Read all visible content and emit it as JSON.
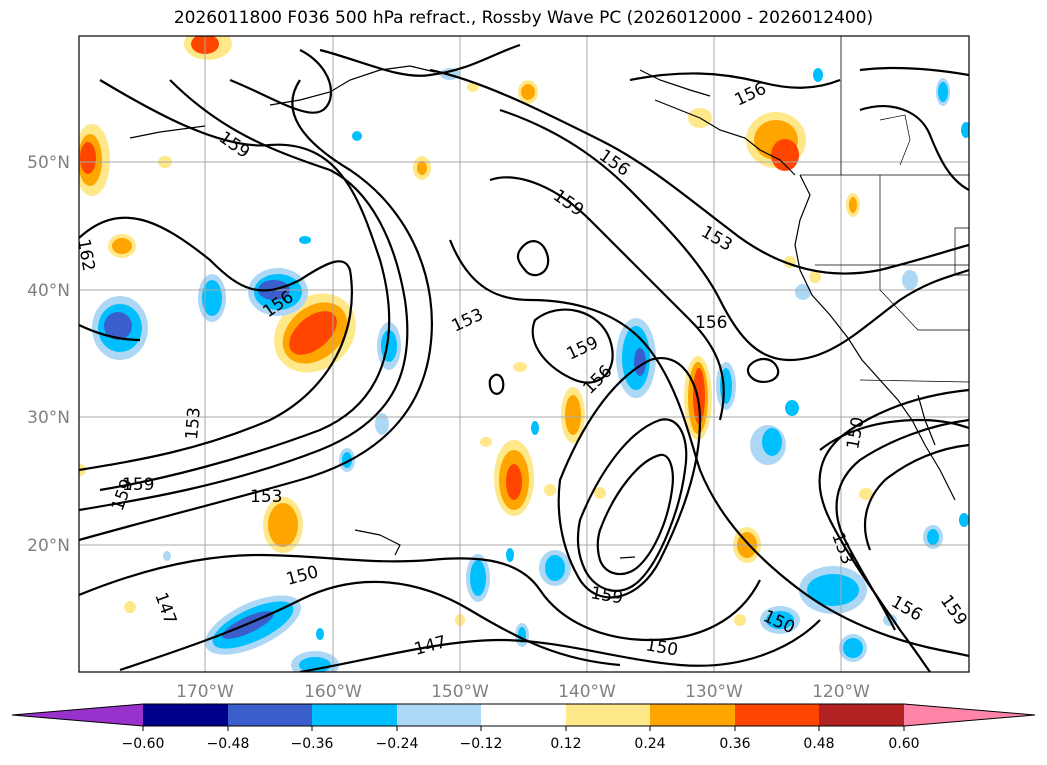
{
  "title": "2026011800 F036 500 hPa refract., Rossby Wave PC (2026012000 - 2026012400)",
  "lat_labels": [
    "50°N",
    "40°N",
    "30°N",
    "20°N"
  ],
  "lon_labels": [
    "170°W",
    "160°W",
    "150°W",
    "140°W",
    "130°W",
    "120°W"
  ],
  "contour_labels": [
    "159",
    "156",
    "153",
    "156",
    "159",
    "162",
    "156",
    "153",
    "159",
    "156",
    "153",
    "159",
    "159",
    "153",
    "150",
    "147",
    "147",
    "150",
    "159",
    "156",
    "153",
    "156",
    "159",
    "150",
    "150"
  ],
  "colorbar": {
    "ticks": [
      "−0.60",
      "−0.48",
      "−0.36",
      "−0.24",
      "−0.12",
      "0.12",
      "0.24",
      "0.36",
      "0.48",
      "0.60"
    ],
    "colors": [
      "#9932cc",
      "#00008b",
      "#3a5fcd",
      "#00bfff",
      "#add8f5",
      "#ffffff",
      "#ffe88a",
      "#ffa500",
      "#ff4500",
      "#b22222",
      "#ff85a8"
    ]
  }
}
